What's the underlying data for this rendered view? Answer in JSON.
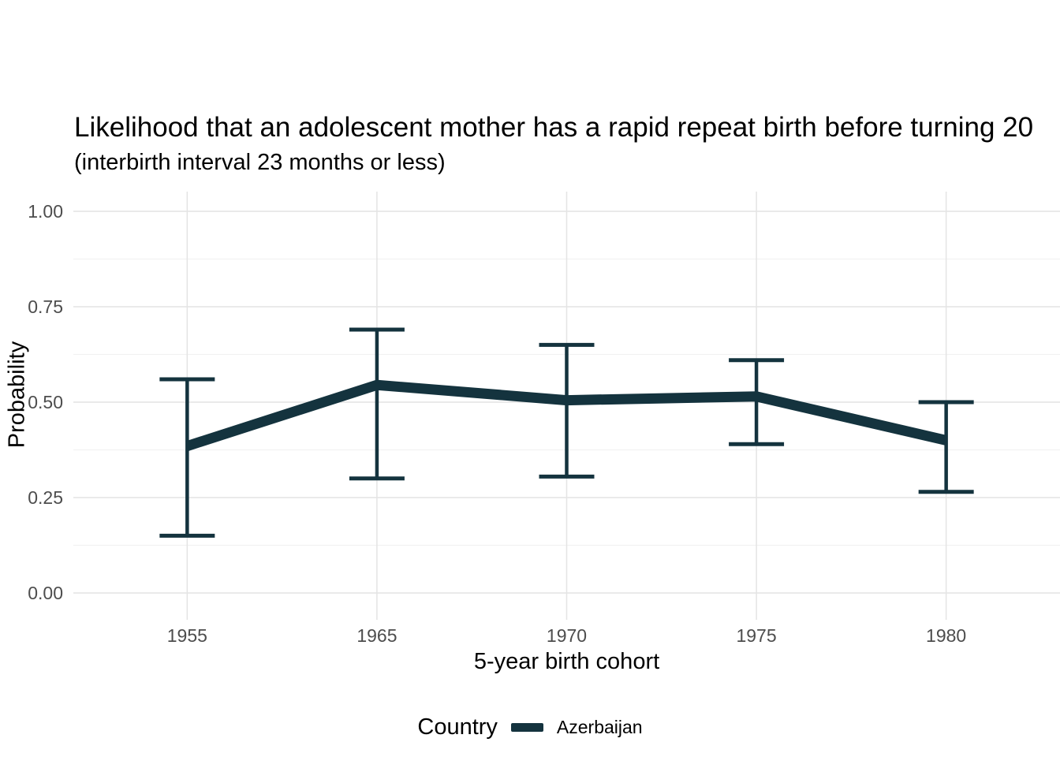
{
  "chart_data": {
    "type": "line",
    "title": "Likelihood that an adolescent mother has a rapid repeat birth before turning 20",
    "subtitle": "(interbirth interval 23 months or less)",
    "xlabel": "5-year birth cohort",
    "ylabel": "Probability",
    "categories": [
      "1955",
      "1965",
      "1970",
      "1975",
      "1980"
    ],
    "series": [
      {
        "name": "Azerbaijan",
        "values": [
          0.385,
          0.545,
          0.505,
          0.515,
          0.4
        ],
        "ci_lower": [
          0.15,
          0.3,
          0.305,
          0.39,
          0.265
        ],
        "ci_upper": [
          0.56,
          0.69,
          0.65,
          0.61,
          0.5
        ]
      }
    ],
    "ylim": [
      0,
      1
    ],
    "yticks": [
      {
        "value": 0,
        "label": "0.00"
      },
      {
        "value": 0.25,
        "label": "0.25"
      },
      {
        "value": 0.5,
        "label": "0.50"
      },
      {
        "value": 0.75,
        "label": "0.75"
      },
      {
        "value": 1,
        "label": "1.00"
      }
    ],
    "minor_gridlines": [
      0.125,
      0.375,
      0.625,
      0.875
    ],
    "grid": "major and minor horizontal, major vertical, no axis lines",
    "legend": {
      "title": "Country",
      "position": "bottom",
      "items": [
        {
          "label": "Azerbaijan",
          "color": "#14333E"
        }
      ]
    }
  },
  "colors": {
    "series": "#14333E",
    "grid_major": "#E4E4E4",
    "grid_minor": "#F2F2F2",
    "tick_label": "#4D4D4D",
    "text": "#000000",
    "background": "#FFFFFF"
  }
}
